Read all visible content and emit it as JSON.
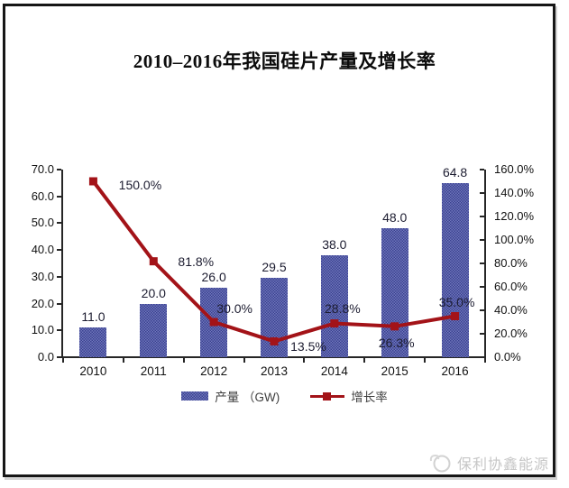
{
  "chart_data": {
    "type": "bar+line",
    "title": "2010–2016年我国硅片产量及增长率",
    "categories": [
      "2010",
      "2011",
      "2012",
      "2013",
      "2014",
      "2015",
      "2016"
    ],
    "series": [
      {
        "name": "产量 （GW)",
        "type": "bar",
        "axis": "left",
        "values": [
          11.0,
          20.0,
          26.0,
          29.5,
          38.0,
          48.0,
          64.8
        ],
        "labels": [
          "11.0",
          "20.0",
          "26.0",
          "29.5",
          "38.0",
          "48.0",
          "64.8"
        ]
      },
      {
        "name": "增长率",
        "type": "line",
        "axis": "right",
        "values": [
          150.0,
          81.8,
          30.0,
          13.5,
          28.8,
          26.3,
          35.0
        ],
        "labels": [
          "150.0%",
          "81.8%",
          "30.0%",
          "13.5%",
          "28.8%",
          "26.3%",
          "35.0%"
        ]
      }
    ],
    "left_axis": {
      "min": 0,
      "max": 70,
      "step": 10,
      "tick_labels": [
        "70.0",
        "60.0",
        "50.0",
        "40.0",
        "30.0",
        "20.0",
        "10.0",
        "0.0"
      ]
    },
    "right_axis": {
      "min": 0,
      "max": 160,
      "step": 20,
      "tick_labels": [
        "160.0%",
        "140.0%",
        "120.0%",
        "100.0%",
        "80.0%",
        "60.0%",
        "40.0%",
        "20.0%",
        "0.0%"
      ]
    },
    "grid": false,
    "legend_position": "bottom"
  },
  "colors": {
    "bar_base": "#4d53a0",
    "bar_light": "#7077bb",
    "bar_dark": "#3a4190",
    "line": "#a31318",
    "axis": "#262626",
    "data_label": "#1c1c30",
    "watermark": "#c6c6c6"
  },
  "watermark": {
    "text": "保利协鑫能源"
  }
}
